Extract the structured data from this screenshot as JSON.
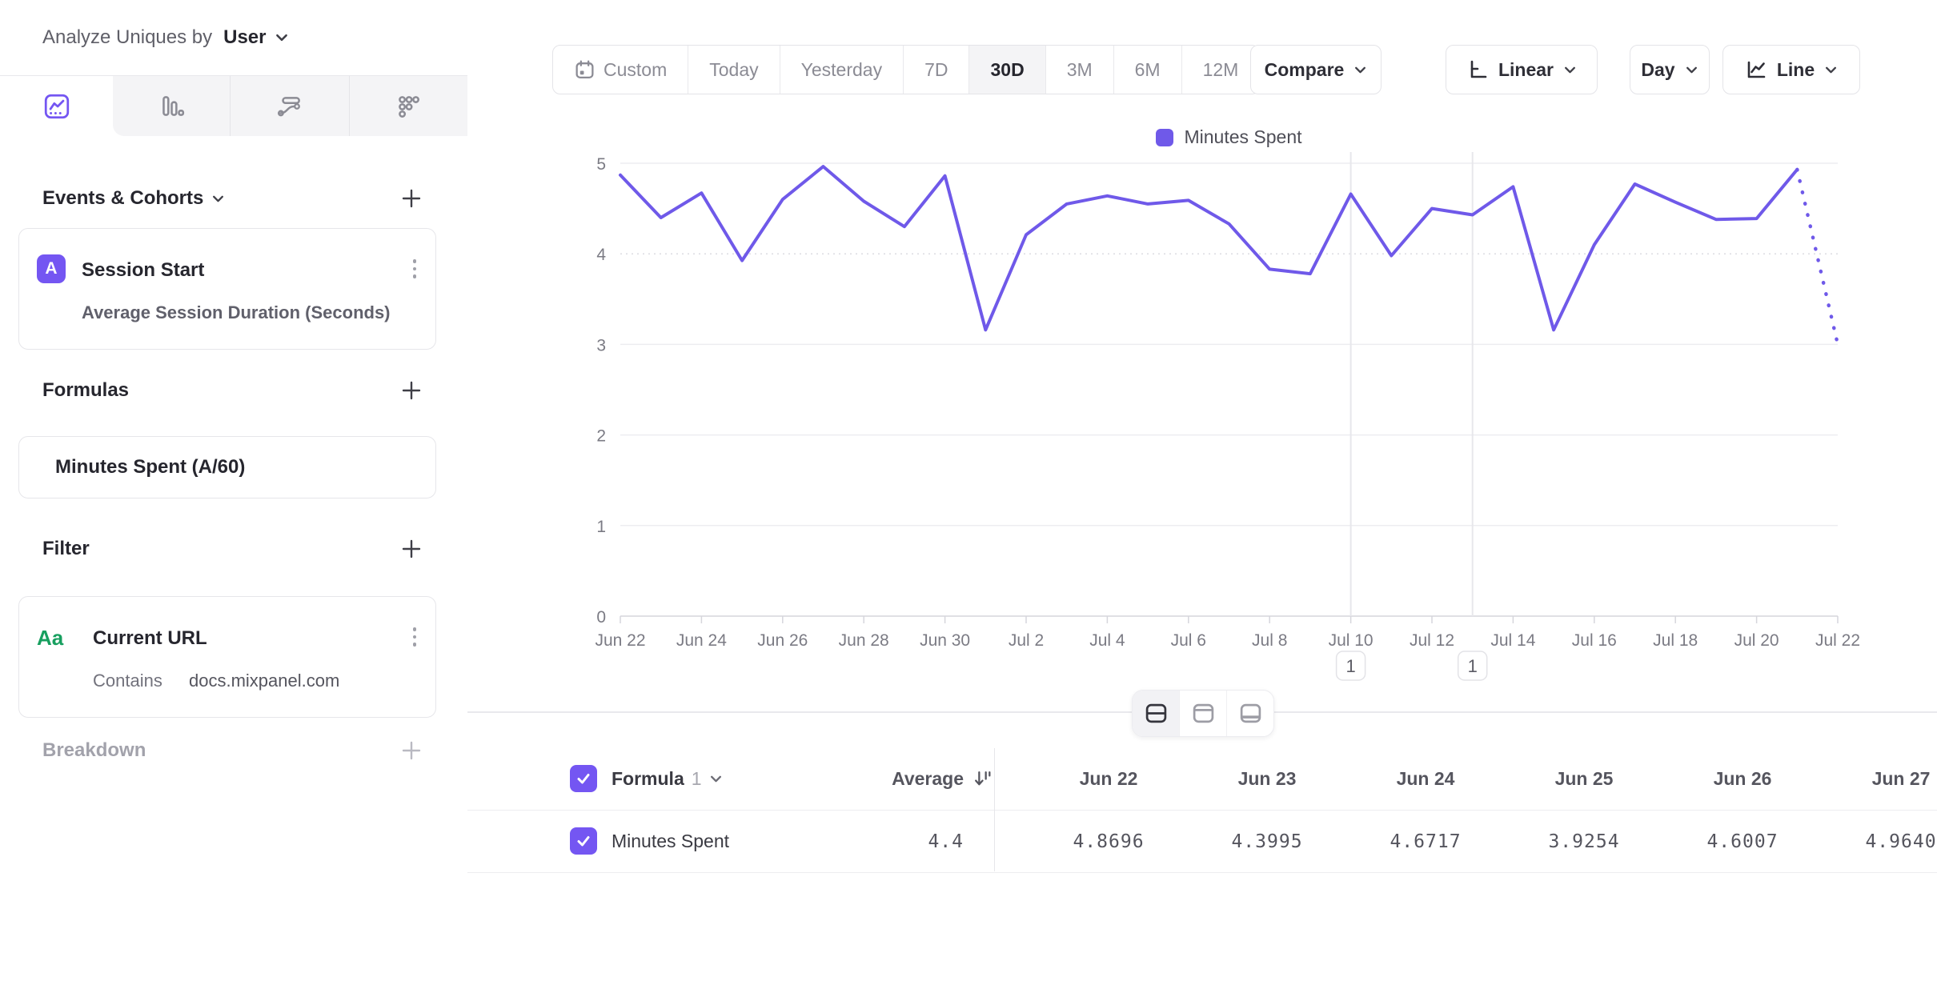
{
  "colors": {
    "accent": "#7456F2",
    "line": "#6F59E9",
    "green": "#179F5F"
  },
  "sidebar": {
    "analyze_label": "Analyze Uniques by",
    "analyze_value": "User",
    "tabs": [
      {
        "name": "insights-line-tab",
        "active": true
      },
      {
        "name": "bar-chart-tab",
        "active": false
      },
      {
        "name": "flows-tab",
        "active": false
      },
      {
        "name": "dots-grid-tab",
        "active": false
      }
    ],
    "events": {
      "title": "Events & Cohorts",
      "card": {
        "letter": "A",
        "title": "Session Start",
        "subtitle": "Average Session Duration (Seconds)"
      }
    },
    "formulas": {
      "title": "Formulas",
      "card": {
        "title": "Minutes Spent (A/60)"
      }
    },
    "filter": {
      "title": "Filter",
      "card": {
        "badge": "Aa",
        "title": "Current URL",
        "operator": "Contains",
        "value": "docs.mixpanel.com"
      }
    },
    "breakdown": {
      "title": "Breakdown"
    }
  },
  "toolbar": {
    "date_ranges": [
      {
        "label": "Custom",
        "icon": "calendar",
        "selected": false
      },
      {
        "label": "Today",
        "selected": false
      },
      {
        "label": "Yesterday",
        "selected": false
      },
      {
        "label": "7D",
        "selected": false
      },
      {
        "label": "30D",
        "selected": true
      },
      {
        "label": "3M",
        "selected": false
      },
      {
        "label": "6M",
        "selected": false
      },
      {
        "label": "12M",
        "selected": false
      }
    ],
    "compare_label": "Compare",
    "scale_label": "Linear",
    "interval_label": "Day",
    "chart_type_label": "Line"
  },
  "chart_data": {
    "type": "line",
    "x": [
      "Jun 22",
      "Jun 23",
      "Jun 24",
      "Jun 25",
      "Jun 26",
      "Jun 27",
      "Jun 28",
      "Jun 29",
      "Jun 30",
      "Jul 1",
      "Jul 2",
      "Jul 3",
      "Jul 4",
      "Jul 5",
      "Jul 6",
      "Jul 7",
      "Jul 8",
      "Jul 9",
      "Jul 10",
      "Jul 11",
      "Jul 12",
      "Jul 13",
      "Jul 14",
      "Jul 15",
      "Jul 16",
      "Jul 17",
      "Jul 18",
      "Jul 19",
      "Jul 20",
      "Jul 21",
      "Jul 22"
    ],
    "series": [
      {
        "name": "Minutes Spent",
        "color": "#6F59E9",
        "values": [
          4.8696,
          4.3995,
          4.6717,
          3.9254,
          4.6007,
          4.964,
          4.58,
          4.3,
          4.86,
          3.16,
          4.21,
          4.55,
          4.64,
          4.55,
          4.59,
          4.33,
          3.83,
          3.78,
          4.66,
          3.98,
          4.5,
          4.43,
          4.74,
          3.16,
          4.1,
          4.77,
          4.57,
          4.38,
          4.39,
          4.93,
          3.0
        ]
      }
    ],
    "legend": [
      "Minutes Spent"
    ],
    "ylim": [
      0,
      5
    ],
    "yticks": [
      0,
      1,
      2,
      3,
      4,
      5
    ],
    "xtick_every": 2,
    "incomplete_last_segment": true,
    "grid": true,
    "annotations": [
      {
        "x": "Jul 10",
        "label": "1"
      },
      {
        "x": "Jul 13",
        "label": "1"
      }
    ]
  },
  "view_toggle": [
    {
      "name": "split-view",
      "active": true
    },
    {
      "name": "chart-top-view",
      "active": false
    },
    {
      "name": "table-bottom-view",
      "active": false
    }
  ],
  "table": {
    "formula_label": "Formula",
    "formula_index": "1",
    "average_label": "Average",
    "columns": [
      "Jun 22",
      "Jun 23",
      "Jun 24",
      "Jun 25",
      "Jun 26",
      "Jun 27"
    ],
    "rows": [
      {
        "name": "Minutes Spent",
        "checked": true,
        "average": "4.4",
        "values": [
          "4.8696",
          "4.3995",
          "4.6717",
          "3.9254",
          "4.6007",
          "4.9640"
        ]
      }
    ]
  }
}
